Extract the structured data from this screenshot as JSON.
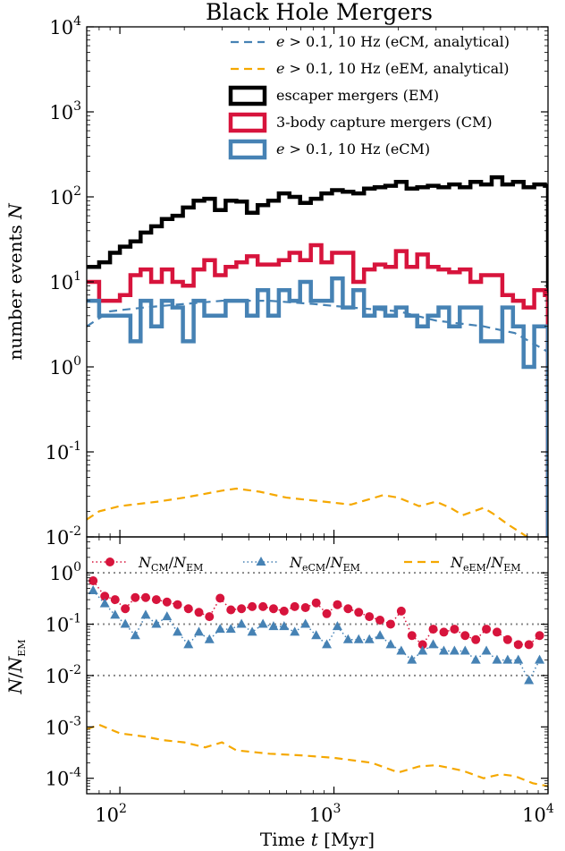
{
  "chart_data": [
    {
      "type": "line",
      "title": "Black Hole Mergers",
      "xlabel": "Time t [Myr]",
      "ylabel": "number events N",
      "xscale": "log",
      "yscale": "log",
      "xlim": [
        70,
        10000
      ],
      "ylim": [
        0.01,
        10000
      ],
      "yticks": [
        "10^-2",
        "10^-1",
        "10^0",
        "10^1",
        "10^2",
        "10^3",
        "10^4"
      ],
      "legend": "top-right",
      "series": [
        {
          "name": "e > 0.1, 10 Hz (eCM, analytical)",
          "color": "#4682b4",
          "style": "dashed",
          "x": [
            70,
            90,
            130,
            200,
            300,
            500,
            800,
            1200,
            2000,
            3000,
            5000,
            7000,
            10000
          ],
          "y": [
            3.0,
            4.5,
            5.0,
            5.5,
            6.0,
            6.0,
            5.5,
            5.0,
            4.5,
            3.5,
            3.0,
            2.5,
            1.5
          ]
        },
        {
          "name": "e > 0.1, 10 Hz (eEM, analytical)",
          "color": "#f5a800",
          "style": "dashed",
          "x": [
            70,
            80,
            100,
            150,
            200,
            300,
            350,
            450,
            600,
            900,
            1200,
            1700,
            2000,
            2500,
            3000,
            3500,
            4000,
            5000,
            5500,
            6500,
            8000,
            10000
          ],
          "y": [
            0.016,
            0.02,
            0.023,
            0.026,
            0.029,
            0.035,
            0.037,
            0.034,
            0.029,
            0.026,
            0.024,
            0.031,
            0.029,
            0.023,
            0.026,
            0.022,
            0.018,
            0.022,
            0.019,
            0.014,
            0.01,
            0.009
          ]
        },
        {
          "name": "escaper mergers (EM)",
          "color": "#000000",
          "style": "step",
          "edges": [
            70,
            80,
            90,
            100,
            112,
            125,
            140,
            157,
            176,
            197,
            221,
            248,
            278,
            312,
            350,
            392,
            440,
            493,
            553,
            620,
            695,
            780,
            874,
            980,
            1099,
            1232,
            1382,
            1549,
            1737,
            1948,
            2184,
            2449,
            2746,
            3079,
            3452,
            3871,
            4340,
            4867,
            5457,
            6119,
            6861,
            7693,
            8626,
            9672,
            10000
          ],
          "values": [
            15,
            17,
            22,
            26,
            30,
            38,
            45,
            55,
            60,
            75,
            90,
            95,
            70,
            90,
            88,
            65,
            80,
            90,
            110,
            100,
            85,
            95,
            110,
            120,
            115,
            110,
            125,
            130,
            135,
            150,
            125,
            130,
            135,
            130,
            140,
            130,
            150,
            140,
            170,
            140,
            150,
            130,
            140,
            135
          ]
        },
        {
          "name": "3-body capture mergers (CM)",
          "color": "#d7143c",
          "style": "step",
          "edges": [
            70,
            80,
            90,
            100,
            112,
            125,
            140,
            157,
            176,
            197,
            221,
            248,
            278,
            312,
            350,
            392,
            440,
            493,
            553,
            620,
            695,
            780,
            874,
            980,
            1099,
            1232,
            1382,
            1549,
            1737,
            1948,
            2184,
            2449,
            2746,
            3079,
            3452,
            3871,
            4340,
            4867,
            5457,
            6119,
            6861,
            7693,
            8626,
            9672,
            10000
          ],
          "values": [
            10,
            6,
            6,
            7,
            12,
            14,
            10,
            14,
            10,
            9,
            14,
            18,
            12,
            15,
            17,
            20,
            16,
            16,
            18,
            22,
            18,
            27,
            17,
            22,
            22,
            10,
            14,
            16,
            15,
            23,
            15,
            21,
            15,
            14,
            13,
            14,
            10,
            12,
            12,
            7,
            6,
            5,
            8,
            7
          ]
        },
        {
          "name": "e > 0.1, 10 Hz (eCM)",
          "color": "#4682b4",
          "style": "step",
          "edges": [
            70,
            80,
            90,
            100,
            112,
            125,
            140,
            157,
            176,
            197,
            221,
            248,
            278,
            312,
            350,
            392,
            440,
            493,
            553,
            620,
            695,
            780,
            874,
            980,
            1099,
            1232,
            1382,
            1549,
            1737,
            1948,
            2184,
            2449,
            2746,
            3079,
            3452,
            3871,
            4340,
            4867,
            5457,
            6119,
            6861,
            7693,
            8626,
            9672,
            10000
          ],
          "values": [
            6,
            4,
            4,
            4,
            2,
            6,
            3,
            6,
            5,
            2,
            6,
            4,
            4,
            6,
            6,
            4,
            8,
            4,
            8,
            6,
            10,
            6,
            6,
            11,
            5,
            8,
            4,
            5,
            4,
            5,
            4,
            3,
            4,
            5,
            3,
            5,
            5,
            2,
            2,
            5,
            3,
            1,
            3,
            3
          ]
        }
      ]
    },
    {
      "type": "scatter",
      "xlabel": "Time t [Myr]",
      "ylabel": "N/N_EM",
      "xscale": "log",
      "yscale": "log",
      "xlim": [
        70,
        10000
      ],
      "ylim": [
        5e-05,
        5
      ],
      "xticks": [
        "10^2",
        "10^3",
        "10^4"
      ],
      "yticks": [
        "10^-4",
        "10^-3",
        "10^-2",
        "10^-1",
        "10^0"
      ],
      "reference_lines": [
        1,
        0.1,
        0.01
      ],
      "legend": "top",
      "series": [
        {
          "name": "N_CM/N_EM",
          "color": "#d7143c",
          "marker": "circle",
          "x": [
            75,
            85,
            95,
            106,
            118,
            132,
            148,
            166,
            186,
            209,
            234,
            262,
            294,
            330,
            370,
            415,
            466,
            522,
            585,
            656,
            736,
            826,
            926,
            1038,
            1164,
            1305,
            1464,
            1641,
            1840,
            2063,
            2313,
            2594,
            2908,
            3261,
            3656,
            4100,
            4597,
            5154,
            5778,
            6479,
            7264,
            8145,
            9133
          ],
          "y": [
            0.7,
            0.35,
            0.3,
            0.2,
            0.33,
            0.33,
            0.3,
            0.27,
            0.24,
            0.2,
            0.17,
            0.14,
            0.32,
            0.19,
            0.2,
            0.22,
            0.22,
            0.2,
            0.18,
            0.22,
            0.21,
            0.26,
            0.16,
            0.24,
            0.2,
            0.17,
            0.14,
            0.12,
            0.1,
            0.18,
            0.06,
            0.04,
            0.08,
            0.07,
            0.08,
            0.06,
            0.05,
            0.08,
            0.07,
            0.05,
            0.04,
            0.04,
            0.06
          ]
        },
        {
          "name": "N_eCM/N_EM",
          "color": "#4682b4",
          "marker": "triangle",
          "x": [
            75,
            85,
            95,
            106,
            118,
            132,
            148,
            166,
            186,
            209,
            234,
            262,
            294,
            330,
            370,
            415,
            466,
            522,
            585,
            656,
            736,
            826,
            926,
            1038,
            1164,
            1305,
            1464,
            1641,
            1840,
            2063,
            2313,
            2594,
            2908,
            3261,
            3656,
            4100,
            4597,
            5154,
            5778,
            6479,
            7264,
            8145,
            9133
          ],
          "y": [
            0.45,
            0.25,
            0.15,
            0.1,
            0.06,
            0.15,
            0.1,
            0.14,
            0.07,
            0.04,
            0.07,
            0.05,
            0.08,
            0.08,
            0.1,
            0.07,
            0.1,
            0.09,
            0.09,
            0.07,
            0.1,
            0.06,
            0.04,
            0.09,
            0.05,
            0.05,
            0.05,
            0.06,
            0.04,
            0.03,
            0.02,
            0.03,
            0.04,
            0.03,
            0.03,
            0.03,
            0.02,
            0.03,
            0.02,
            0.02,
            0.02,
            0.008,
            0.02
          ]
        },
        {
          "name": "N_eEM/N_EM",
          "color": "#f5a800",
          "style": "dashed",
          "x": [
            70,
            80,
            100,
            130,
            160,
            200,
            250,
            300,
            350,
            500,
            700,
            1000,
            1500,
            2000,
            2500,
            3000,
            4000,
            5000,
            6000,
            7000,
            8500,
            10000
          ],
          "y": [
            0.0009,
            0.0011,
            0.00075,
            0.00065,
            0.00055,
            0.0005,
            0.0004,
            0.0005,
            0.00035,
            0.0003,
            0.00028,
            0.00025,
            0.0002,
            0.00013,
            0.00017,
            0.00018,
            0.00014,
            0.0001,
            0.00012,
            0.00011,
            8e-05,
            7e-05
          ]
        }
      ]
    }
  ]
}
